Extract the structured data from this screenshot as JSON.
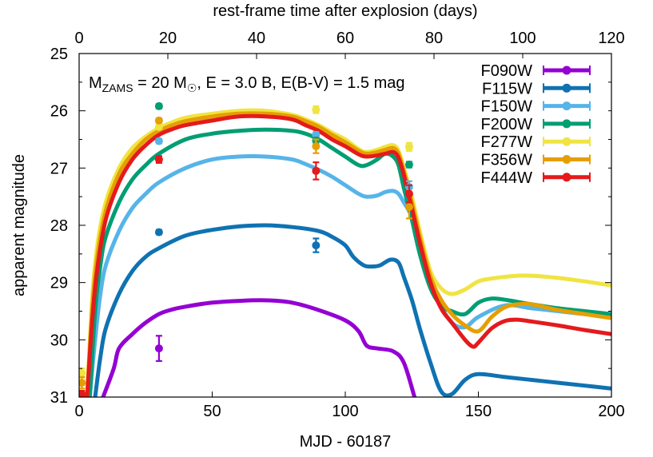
{
  "chart_data": {
    "type": "line",
    "title": "",
    "annotation": {
      "prefix": "M",
      "sub": "ZAMS",
      "mid": " = 20 M",
      "sun": "☉",
      "suffix": ", E = 3.0 B, E(B-V) = 1.5 mag"
    },
    "xlabel": "MJD - 60187",
    "x2label": "rest-frame time after explosion (days)",
    "ylabel": "apparent magnitude",
    "xlim": [
      0,
      200
    ],
    "x2lim": [
      0,
      120
    ],
    "ylim": [
      25,
      31
    ],
    "y_inverted": true,
    "xticks": [
      "0",
      "50",
      "100",
      "150",
      "200"
    ],
    "x2ticks": [
      "0",
      "20",
      "40",
      "60",
      "80",
      "100",
      "120"
    ],
    "yticks": [
      "25",
      "26",
      "27",
      "28",
      "29",
      "30",
      "31"
    ],
    "legend_position": "top-right",
    "series": [
      {
        "name": "F090W",
        "color": "#9400d3",
        "x": [
          9,
          13,
          15,
          20,
          25,
          30,
          35,
          40,
          50,
          60,
          70,
          80,
          90,
          100,
          105,
          108,
          112,
          118,
          122,
          126
        ],
        "y": [
          31.0,
          30.5,
          30.15,
          29.9,
          29.7,
          29.55,
          29.47,
          29.42,
          29.35,
          29.32,
          29.31,
          29.35,
          29.48,
          29.66,
          29.85,
          30.1,
          30.15,
          30.2,
          30.4,
          31.0
        ],
        "obs": [
          {
            "x": 30,
            "y": 30.15,
            "err": 0.22
          }
        ]
      },
      {
        "name": "F115W",
        "color": "#0f72b2",
        "x": [
          6,
          8,
          10,
          15,
          20,
          25,
          30,
          40,
          50,
          60,
          70,
          80,
          90,
          95,
          100,
          103,
          107,
          110,
          113,
          117,
          120,
          122,
          125,
          128,
          132,
          136,
          140,
          145,
          150,
          160,
          170,
          180,
          190,
          200
        ],
        "y": [
          31.0,
          30.3,
          29.8,
          29.2,
          28.8,
          28.55,
          28.4,
          28.18,
          28.08,
          28.02,
          28.0,
          28.03,
          28.1,
          28.2,
          28.35,
          28.55,
          28.7,
          28.72,
          28.7,
          28.6,
          28.65,
          28.9,
          29.3,
          29.8,
          30.4,
          30.9,
          30.95,
          30.7,
          30.6,
          30.65,
          30.7,
          30.75,
          30.8,
          30.85
        ],
        "obs": [
          {
            "x": 30,
            "y": 28.12,
            "err": 0.04
          },
          {
            "x": 89,
            "y": 28.35,
            "err": 0.12
          }
        ]
      },
      {
        "name": "F150W",
        "color": "#56b4e9",
        "x": [
          4,
          6,
          8,
          10,
          15,
          20,
          25,
          30,
          40,
          50,
          60,
          70,
          80,
          85,
          90,
          95,
          100,
          105,
          108,
          112,
          115,
          118,
          120,
          122,
          125,
          128,
          132,
          136,
          140,
          145,
          150,
          160,
          170,
          180,
          190,
          200
        ],
        "y": [
          31.0,
          30.0,
          29.2,
          28.7,
          28.1,
          27.7,
          27.45,
          27.25,
          27.0,
          26.85,
          26.8,
          26.8,
          26.85,
          26.93,
          27.03,
          27.15,
          27.3,
          27.45,
          27.5,
          27.48,
          27.42,
          27.4,
          27.45,
          27.6,
          27.85,
          28.3,
          28.9,
          29.4,
          29.7,
          29.78,
          29.6,
          29.4,
          29.45,
          29.5,
          29.55,
          29.58
        ],
        "obs": [
          {
            "x": 30,
            "y": 26.53,
            "err": 0.04
          },
          {
            "x": 89,
            "y": 26.42,
            "err": 0.05
          },
          {
            "x": 124,
            "y": 27.33,
            "err": 0.1
          }
        ]
      },
      {
        "name": "F200W",
        "color": "#009e73",
        "x": [
          4,
          6,
          8,
          10,
          15,
          20,
          25,
          30,
          40,
          50,
          60,
          70,
          80,
          85,
          90,
          95,
          100,
          105,
          108,
          112,
          115,
          118,
          120,
          122,
          125,
          128,
          132,
          136,
          140,
          145,
          150,
          155,
          160,
          170,
          180,
          190,
          200
        ],
        "y": [
          31.0,
          29.5,
          28.7,
          28.2,
          27.6,
          27.2,
          26.95,
          26.75,
          26.5,
          26.4,
          26.35,
          26.33,
          26.35,
          26.4,
          26.5,
          26.65,
          26.8,
          26.95,
          26.95,
          26.85,
          26.75,
          26.8,
          26.95,
          27.35,
          27.9,
          28.5,
          29.1,
          29.4,
          29.5,
          29.55,
          29.35,
          29.28,
          29.3,
          29.38,
          29.45,
          29.5,
          29.55
        ],
        "obs": [
          {
            "x": 30,
            "y": 25.92,
            "err": 0.04
          },
          {
            "x": 89,
            "y": 26.52,
            "err": 0.05
          },
          {
            "x": 124,
            "y": 26.94,
            "err": 0.05
          }
        ]
      },
      {
        "name": "F277W",
        "color": "#f0e442",
        "x": [
          3,
          5,
          7,
          10,
          15,
          20,
          25,
          30,
          35,
          40,
          50,
          60,
          70,
          80,
          85,
          90,
          95,
          100,
          105,
          108,
          112,
          115,
          118,
          120,
          122,
          125,
          128,
          132,
          136,
          140,
          145,
          150,
          155,
          160,
          165,
          170,
          180,
          190,
          200
        ],
        "y": [
          31.0,
          29.2,
          28.3,
          27.6,
          27.0,
          26.65,
          26.45,
          26.3,
          26.2,
          26.12,
          26.05,
          26.0,
          26.0,
          26.07,
          26.15,
          26.25,
          26.38,
          26.5,
          26.67,
          26.72,
          26.68,
          26.63,
          26.6,
          26.7,
          27.0,
          27.5,
          28.1,
          28.8,
          29.1,
          29.2,
          29.12,
          28.98,
          28.93,
          28.9,
          28.88,
          28.88,
          28.92,
          28.98,
          29.05
        ],
        "obs": [
          {
            "x": 1,
            "y": 30.58,
            "err": 0.08
          },
          {
            "x": 30,
            "y": 26.28,
            "err": 0.04
          },
          {
            "x": 89,
            "y": 25.98,
            "err": 0.06
          },
          {
            "x": 124,
            "y": 26.63,
            "err": 0.07
          }
        ]
      },
      {
        "name": "F356W",
        "color": "#e69f00",
        "x": [
          3,
          5,
          7,
          10,
          15,
          20,
          25,
          30,
          35,
          40,
          50,
          60,
          70,
          80,
          85,
          90,
          95,
          100,
          105,
          108,
          112,
          115,
          118,
          120,
          122,
          125,
          128,
          132,
          136,
          140,
          145,
          150,
          155,
          160,
          165,
          170,
          180,
          190,
          200
        ],
        "y": [
          31.0,
          29.4,
          28.5,
          27.75,
          27.1,
          26.75,
          26.5,
          26.35,
          26.25,
          26.18,
          26.1,
          26.05,
          26.05,
          26.1,
          26.18,
          26.28,
          26.42,
          26.55,
          26.7,
          26.75,
          26.72,
          26.68,
          26.65,
          26.75,
          27.05,
          27.6,
          28.2,
          28.9,
          29.3,
          29.55,
          29.75,
          29.85,
          29.6,
          29.43,
          29.38,
          29.38,
          29.48,
          29.55,
          29.62
        ],
        "obs": [
          {
            "x": 1,
            "y": 30.75,
            "err": 0.1
          },
          {
            "x": 30,
            "y": 26.17,
            "err": 0.04
          },
          {
            "x": 89,
            "y": 26.62,
            "err": 0.12
          },
          {
            "x": 124,
            "y": 27.68,
            "err": 0.2
          }
        ]
      },
      {
        "name": "F444W",
        "color": "#e41a1c",
        "x": [
          3,
          5,
          7,
          10,
          15,
          20,
          25,
          30,
          35,
          40,
          50,
          60,
          70,
          80,
          85,
          90,
          95,
          100,
          105,
          108,
          112,
          115,
          118,
          120,
          122,
          125,
          128,
          132,
          136,
          140,
          145,
          148,
          150,
          155,
          160,
          165,
          170,
          180,
          190,
          200
        ],
        "y": [
          31.0,
          29.6,
          28.7,
          27.9,
          27.25,
          26.85,
          26.6,
          26.42,
          26.32,
          26.25,
          26.17,
          26.1,
          26.1,
          26.15,
          26.25,
          26.35,
          26.5,
          26.62,
          26.76,
          26.8,
          26.78,
          26.75,
          26.72,
          26.82,
          27.12,
          27.7,
          28.3,
          29.0,
          29.45,
          29.7,
          30.0,
          30.12,
          30.05,
          29.8,
          29.67,
          29.65,
          29.68,
          29.75,
          29.83,
          29.9
        ],
        "obs": [
          {
            "x": 1,
            "y": 30.95,
            "err": 0.06
          },
          {
            "x": 30,
            "y": 26.85,
            "err": 0.06
          },
          {
            "x": 89,
            "y": 27.05,
            "err": 0.15
          },
          {
            "x": 124,
            "y": 27.45,
            "err": 0.15
          }
        ]
      }
    ]
  }
}
